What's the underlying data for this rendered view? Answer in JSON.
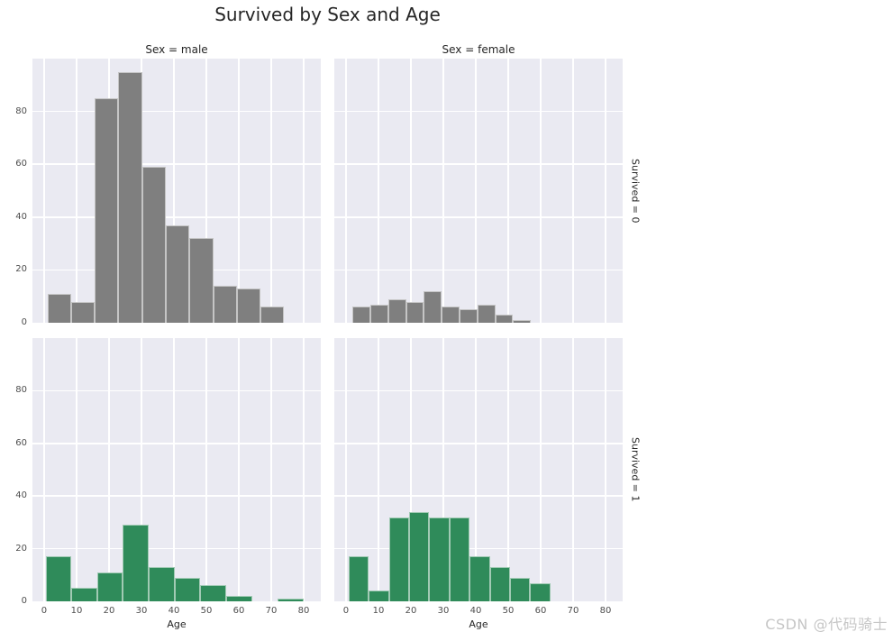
{
  "page": {
    "watermark": "CSDN @代码骑士"
  },
  "chart_data": {
    "type": "bar",
    "subtype": "faceted-histogram",
    "title": "Survived by Sex and Age",
    "xlabel": "Age",
    "ylabel": "",
    "col_variable": "Sex",
    "row_variable": "Survived",
    "col_titles": [
      "Sex = male",
      "Sex = female"
    ],
    "row_titles": [
      "Survived = 0",
      "Survived = 1"
    ],
    "x_ticks": [
      0,
      10,
      20,
      30,
      40,
      50,
      60,
      70,
      80
    ],
    "y_ticks": [
      0,
      20,
      40,
      60,
      80
    ],
    "xlim": [
      -3.61,
      85.28
    ],
    "ylim": [
      0,
      100
    ],
    "grid": true,
    "legend": false,
    "colors": {
      "survived_0": "#7f7f7f",
      "survived_1": "#2f8b5a"
    },
    "facets": [
      {
        "name": "male-died",
        "col_title": "Sex = male",
        "row_title": "Survived = 0",
        "color": "#7f7f7f",
        "bin_edges": [
          1,
          8.3,
          15.6,
          22.9,
          30.2,
          37.5,
          44.8,
          52.1,
          59.4,
          66.7,
          74
        ],
        "counts": [
          11,
          8,
          85,
          95,
          59,
          37,
          32,
          14,
          13,
          6
        ]
      },
      {
        "name": "female-died",
        "col_title": "Sex = female",
        "row_title": "Survived = 0",
        "color": "#7f7f7f",
        "bin_edges": [
          2,
          7.5,
          13,
          18.5,
          24,
          29.5,
          35,
          40.5,
          46,
          51.5,
          57
        ],
        "counts": [
          6,
          7,
          9,
          8,
          12,
          6,
          5,
          7,
          3,
          1
        ]
      },
      {
        "name": "male-survived",
        "col_title": "Sex = male",
        "row_title": "Survived = 1",
        "color": "#2f8b5a",
        "bin_edges": [
          0.42,
          8.38,
          16.34,
          24.29,
          32.25,
          40.21,
          48.17,
          56.13,
          64.08,
          72.04,
          80
        ],
        "counts": [
          17,
          5,
          11,
          29,
          13,
          9,
          6,
          2,
          0,
          1
        ]
      },
      {
        "name": "female-survived",
        "col_title": "Sex = female",
        "row_title": "Survived = 1",
        "color": "#2f8b5a",
        "bin_edges": [
          0.75,
          6.98,
          13.2,
          19.43,
          25.65,
          31.88,
          38.1,
          44.33,
          50.55,
          56.78,
          63
        ],
        "counts": [
          17,
          4,
          32,
          34,
          32,
          32,
          17,
          13,
          9,
          7
        ]
      }
    ]
  }
}
